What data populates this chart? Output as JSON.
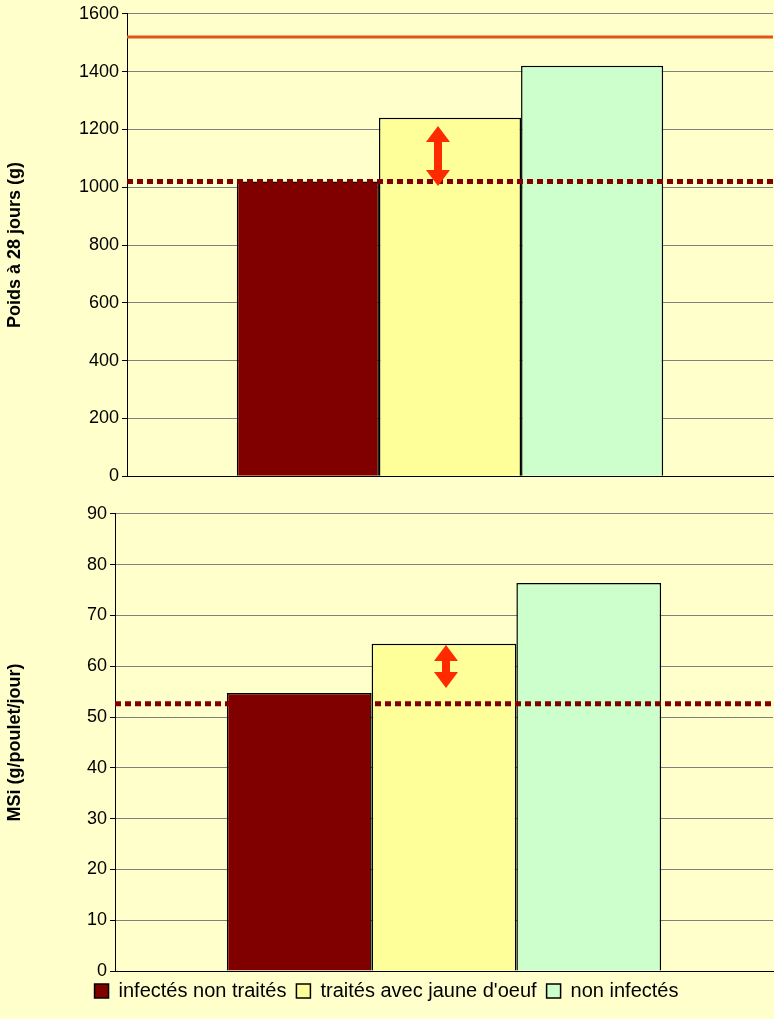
{
  "chart_data": [
    {
      "type": "bar",
      "ylabel": "Poids à 28 jours (g)",
      "categories": [
        null
      ],
      "series": [
        {
          "color": "#800000",
          "values": [
            1020
          ]
        },
        {
          "color": "#ffff99",
          "values": [
            1240
          ]
        },
        {
          "color": "#ccffcc",
          "values": [
            1420
          ]
        }
      ],
      "ylim": [
        0,
        1600
      ],
      "yticks": [
        0,
        200,
        400,
        600,
        800,
        1000,
        1200,
        1400,
        1600
      ],
      "grid": "y",
      "tick_labels": "y",
      "legend": false,
      "ref_lines": [
        {
          "axis": "y",
          "value": 1520,
          "color": "#e0531b",
          "line_style": "solid"
        },
        {
          "axis": "y",
          "value": 1020,
          "color": "#800000",
          "line_style": "dotted"
        }
      ]
    },
    {
      "type": "bar",
      "ylabel": "MSi (g/poulet/jour)",
      "categories": [
        null
      ],
      "series": [
        {
          "name": "infectés non traités",
          "color": "#800000",
          "values": [
            54.7
          ]
        },
        {
          "name": "traités avec jaune d'oeuf",
          "color": "#ffff99",
          "values": [
            64.4
          ]
        },
        {
          "name": "non infectés",
          "color": "#ccffcc",
          "values": [
            76.4
          ]
        }
      ],
      "ylim": [
        0,
        90
      ],
      "yticks": [
        0,
        10,
        20,
        30,
        40,
        50,
        60,
        70,
        80,
        90
      ],
      "grid": "y",
      "tick_labels": "y",
      "legend": "bottom",
      "ref_lines": [
        {
          "axis": "y",
          "value": 52.6,
          "color": "#800000",
          "line_style": "dotted"
        }
      ]
    }
  ]
}
